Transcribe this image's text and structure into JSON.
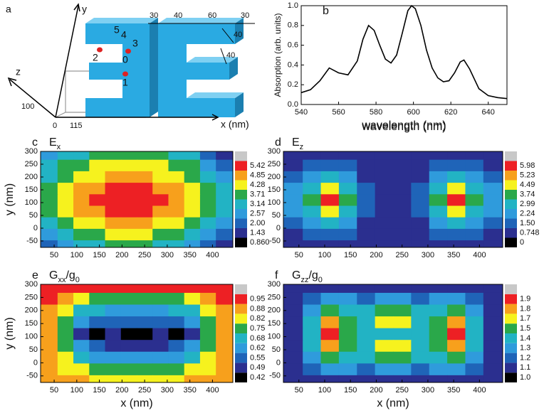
{
  "diagram": {
    "label": "a",
    "axes": {
      "x": "x (nm)",
      "y": "y",
      "z": "z"
    },
    "axis_marks": {
      "origin": 0,
      "x": 115,
      "z": 100
    },
    "dimensions": [
      30,
      40,
      60,
      30,
      40,
      40
    ],
    "sites": [
      0,
      1,
      2,
      3,
      4,
      5
    ]
  },
  "chart_data": [
    {
      "type": "line",
      "label": "b",
      "xlabel": "wavelength (nm)",
      "ylabel": "Absorption (arb. units)",
      "color": "#000000",
      "x": [
        540,
        545,
        550,
        555,
        560,
        565,
        570,
        573,
        576,
        579,
        582,
        585,
        588,
        591,
        594,
        597,
        599,
        601,
        604,
        607,
        610,
        613,
        616,
        619,
        622,
        625,
        627,
        630,
        635,
        640,
        645,
        650
      ],
      "values": [
        0.12,
        0.15,
        0.24,
        0.37,
        0.32,
        0.3,
        0.44,
        0.66,
        0.8,
        0.75,
        0.6,
        0.46,
        0.42,
        0.5,
        0.72,
        0.95,
        1.0,
        0.97,
        0.8,
        0.55,
        0.37,
        0.27,
        0.23,
        0.24,
        0.32,
        0.43,
        0.45,
        0.36,
        0.16,
        0.09,
        0.07,
        0.06
      ],
      "xlim": [
        540,
        650
      ],
      "ylim": [
        0,
        1
      ],
      "xticks": [
        540,
        560,
        580,
        600,
        620,
        640
      ],
      "yticks": [
        {
          "value": 0,
          "label": "0.0"
        },
        0.2,
        0.4,
        0.6,
        0.8,
        {
          "value": 1,
          "label": "1.0"
        }
      ]
    },
    {
      "type": "contour",
      "label": "c",
      "title_parts": [
        {
          "text": "E"
        },
        {
          "text": "x",
          "sub": true
        }
      ],
      "ylabel": "y (nm)",
      "xlim": [
        20,
        445
      ],
      "ylim": [
        -75,
        300
      ],
      "xticks": [
        50,
        100,
        150,
        200,
        250,
        300,
        350,
        400
      ],
      "yticks": [
        -50,
        0,
        50,
        100,
        150,
        200,
        250,
        300
      ],
      "x": [
        40,
        75,
        110,
        145,
        180,
        215,
        250,
        285,
        320,
        355,
        390,
        425
      ],
      "y": [
        290,
        245,
        200,
        155,
        110,
        65,
        20,
        -25,
        -70
      ],
      "z": [
        [
          2.9,
          3.3,
          3.6,
          3.8,
          3.8,
          3.8,
          3.8,
          3.8,
          3.6,
          3.2,
          2.4,
          1.7
        ],
        [
          3.3,
          3.8,
          4.1,
          4.3,
          4.4,
          4.4,
          4.4,
          4.3,
          4.1,
          3.8,
          3.0,
          2.3
        ],
        [
          3.6,
          4.1,
          4.5,
          4.8,
          4.9,
          4.9,
          4.9,
          4.8,
          4.5,
          4.2,
          3.6,
          2.9
        ],
        [
          3.8,
          4.4,
          4.9,
          5.3,
          5.5,
          5.5,
          5.5,
          5.4,
          5.0,
          4.5,
          3.9,
          3.2
        ],
        [
          3.9,
          4.5,
          5.1,
          5.5,
          5.7,
          5.8,
          5.8,
          5.6,
          5.2,
          4.7,
          4.0,
          3.3
        ],
        [
          3.8,
          4.4,
          4.9,
          5.3,
          5.5,
          5.5,
          5.5,
          5.4,
          5.0,
          4.5,
          3.9,
          3.2
        ],
        [
          3.5,
          4.0,
          4.5,
          4.8,
          4.9,
          4.9,
          4.9,
          4.8,
          4.5,
          4.1,
          3.5,
          2.9
        ],
        [
          3.0,
          3.6,
          4.0,
          4.2,
          4.3,
          4.3,
          4.3,
          4.2,
          4.0,
          3.6,
          3.0,
          2.4
        ],
        [
          2.4,
          3.0,
          3.5,
          3.7,
          3.8,
          3.8,
          3.8,
          3.7,
          3.5,
          3.0,
          2.4,
          1.9
        ]
      ],
      "levels": [
        {
          "value": 0.86,
          "label": "0.860"
        },
        1.43,
        {
          "value": 2,
          "label": "2.00"
        },
        2.57,
        3.14,
        3.71,
        4.28,
        4.85,
        5.42
      ],
      "colors": [
        "#000000",
        "#2b2f8f",
        "#1f64b8",
        "#2f9bdc",
        "#22b3c4",
        "#2aa84a",
        "#f6f21e",
        "#f7a01c",
        "#ed2024",
        "#c8c8c8"
      ]
    },
    {
      "type": "contour",
      "label": "d",
      "title_parts": [
        {
          "text": "E"
        },
        {
          "text": "z",
          "sub": true
        }
      ],
      "xlim": [
        20,
        445
      ],
      "ylim": [
        -75,
        300
      ],
      "xticks": [
        50,
        100,
        150,
        200,
        250,
        300,
        350,
        400
      ],
      "yticks": [
        -50,
        0,
        50,
        100,
        150,
        200,
        250,
        300
      ],
      "x": [
        40,
        75,
        110,
        145,
        180,
        215,
        250,
        285,
        320,
        355,
        390,
        425
      ],
      "y": [
        290,
        245,
        200,
        155,
        110,
        65,
        20,
        -25,
        -70
      ],
      "z": [
        [
          1.0,
          1.2,
          1.3,
          1.2,
          0.9,
          0.8,
          0.8,
          0.9,
          1.2,
          1.3,
          1.2,
          1.0
        ],
        [
          1.3,
          1.8,
          2.1,
          1.8,
          1.1,
          0.8,
          0.8,
          1.1,
          1.8,
          2.1,
          1.8,
          1.3
        ],
        [
          1.8,
          2.6,
          3.2,
          2.6,
          1.4,
          0.8,
          0.8,
          1.4,
          2.6,
          3.2,
          2.6,
          1.8
        ],
        [
          2.3,
          3.6,
          4.8,
          3.6,
          1.7,
          0.9,
          0.9,
          1.7,
          3.6,
          4.8,
          3.6,
          2.3
        ],
        [
          2.5,
          4.2,
          6.2,
          4.2,
          1.9,
          0.9,
          0.9,
          1.9,
          4.2,
          6.2,
          4.2,
          2.5
        ],
        [
          2.3,
          3.6,
          4.8,
          3.6,
          1.7,
          0.9,
          0.9,
          1.7,
          3.6,
          4.8,
          3.6,
          2.3
        ],
        [
          1.8,
          2.6,
          3.2,
          2.6,
          1.4,
          0.8,
          0.8,
          1.4,
          2.6,
          3.2,
          2.6,
          1.8
        ],
        [
          1.3,
          1.8,
          2.1,
          1.8,
          1.1,
          0.8,
          0.8,
          1.1,
          1.8,
          2.1,
          1.8,
          1.3
        ],
        [
          1.0,
          1.2,
          1.3,
          1.2,
          0.9,
          0.8,
          0.8,
          0.9,
          1.2,
          1.3,
          1.2,
          1.0
        ]
      ],
      "levels": [
        0,
        0.748,
        {
          "value": 1.5,
          "label": "1.50"
        },
        2.24,
        2.99,
        3.74,
        4.49,
        5.23,
        5.98
      ],
      "colors": [
        "#000000",
        "#2b2f8f",
        "#1f64b8",
        "#2f9bdc",
        "#22b3c4",
        "#2aa84a",
        "#f6f21e",
        "#f7a01c",
        "#ed2024",
        "#c8c8c8"
      ]
    },
    {
      "type": "contour",
      "label": "e",
      "title_parts": [
        {
          "text": "G"
        },
        {
          "text": "xx",
          "sub": true
        },
        {
          "text": "/g"
        },
        {
          "text": "0",
          "sub": true
        }
      ],
      "ylabel": "y (nm)",
      "xlabel": "x (nm)",
      "xlim": [
        20,
        445
      ],
      "ylim": [
        -75,
        300
      ],
      "xticks": [
        50,
        100,
        150,
        200,
        250,
        300,
        350,
        400
      ],
      "yticks": [
        -50,
        0,
        50,
        100,
        150,
        200,
        250,
        300
      ],
      "x": [
        40,
        75,
        110,
        145,
        180,
        215,
        250,
        285,
        320,
        355,
        390,
        425
      ],
      "y": [
        290,
        245,
        200,
        155,
        110,
        65,
        20,
        -25,
        -70
      ],
      "z": [
        [
          0.96,
          0.96,
          0.95,
          0.95,
          0.95,
          0.95,
          0.95,
          0.95,
          0.95,
          0.95,
          0.96,
          0.96
        ],
        [
          0.95,
          0.88,
          0.83,
          0.8,
          0.8,
          0.8,
          0.8,
          0.8,
          0.8,
          0.83,
          0.88,
          0.95
        ],
        [
          0.93,
          0.83,
          0.74,
          0.68,
          0.66,
          0.67,
          0.67,
          0.66,
          0.68,
          0.74,
          0.83,
          0.93
        ],
        [
          0.92,
          0.8,
          0.65,
          0.58,
          0.56,
          0.58,
          0.58,
          0.56,
          0.58,
          0.65,
          0.8,
          0.92
        ],
        [
          0.91,
          0.78,
          0.52,
          0.48,
          0.53,
          0.48,
          0.48,
          0.53,
          0.48,
          0.52,
          0.78,
          0.91
        ],
        [
          0.92,
          0.8,
          0.62,
          0.56,
          0.54,
          0.52,
          0.52,
          0.54,
          0.56,
          0.62,
          0.8,
          0.92
        ],
        [
          0.92,
          0.83,
          0.72,
          0.66,
          0.64,
          0.64,
          0.64,
          0.64,
          0.66,
          0.72,
          0.83,
          0.92
        ],
        [
          0.92,
          0.87,
          0.82,
          0.79,
          0.78,
          0.78,
          0.78,
          0.78,
          0.79,
          0.82,
          0.87,
          0.92
        ],
        [
          0.93,
          0.9,
          0.88,
          0.87,
          0.87,
          0.87,
          0.87,
          0.87,
          0.87,
          0.88,
          0.9,
          0.93
        ]
      ],
      "levels": [
        0.42,
        0.49,
        0.55,
        0.62,
        0.68,
        0.75,
        0.82,
        0.88,
        0.95
      ],
      "colors": [
        "#000000",
        "#2b2f8f",
        "#1f64b8",
        "#2f9bdc",
        "#22b3c4",
        "#2aa84a",
        "#f6f21e",
        "#f7a01c",
        "#ed2024",
        "#c8c8c8"
      ]
    },
    {
      "type": "contour",
      "label": "f",
      "title_parts": [
        {
          "text": "G"
        },
        {
          "text": "zz",
          "sub": true
        },
        {
          "text": "/g"
        },
        {
          "text": "0",
          "sub": true
        }
      ],
      "xlabel": "x (nm)",
      "xlim": [
        20,
        445
      ],
      "ylim": [
        -75,
        300
      ],
      "xticks": [
        50,
        100,
        150,
        200,
        250,
        300,
        350,
        400
      ],
      "yticks": [
        -50,
        0,
        50,
        100,
        150,
        200,
        250,
        300
      ],
      "x": [
        40,
        75,
        110,
        145,
        180,
        215,
        250,
        285,
        320,
        355,
        390,
        425
      ],
      "y": [
        290,
        245,
        200,
        155,
        110,
        65,
        20,
        -25,
        -70
      ],
      "z": [
        [
          1.12,
          1.13,
          1.15,
          1.16,
          1.16,
          1.16,
          1.16,
          1.16,
          1.16,
          1.15,
          1.13,
          1.12
        ],
        [
          1.13,
          1.22,
          1.32,
          1.3,
          1.28,
          1.3,
          1.3,
          1.28,
          1.3,
          1.32,
          1.22,
          1.13
        ],
        [
          1.14,
          1.35,
          1.55,
          1.45,
          1.4,
          1.55,
          1.55,
          1.4,
          1.45,
          1.55,
          1.35,
          1.14
        ],
        [
          1.14,
          1.42,
          1.85,
          1.55,
          1.48,
          1.75,
          1.75,
          1.48,
          1.55,
          1.85,
          1.42,
          1.14
        ],
        [
          1.14,
          1.44,
          1.9,
          1.55,
          1.45,
          1.45,
          1.45,
          1.45,
          1.55,
          1.9,
          1.44,
          1.14
        ],
        [
          1.14,
          1.42,
          1.85,
          1.55,
          1.48,
          1.75,
          1.75,
          1.48,
          1.55,
          1.85,
          1.42,
          1.14
        ],
        [
          1.14,
          1.35,
          1.55,
          1.45,
          1.4,
          1.55,
          1.55,
          1.4,
          1.45,
          1.55,
          1.35,
          1.14
        ],
        [
          1.13,
          1.22,
          1.32,
          1.3,
          1.28,
          1.3,
          1.3,
          1.28,
          1.3,
          1.32,
          1.22,
          1.13
        ],
        [
          1.12,
          1.13,
          1.15,
          1.16,
          1.16,
          1.16,
          1.16,
          1.16,
          1.16,
          1.15,
          1.13,
          1.12
        ]
      ],
      "levels": [
        {
          "value": 1,
          "label": "1.0"
        },
        1.1,
        1.2,
        1.3,
        1.4,
        1.5,
        1.7,
        1.8,
        1.9
      ],
      "colors": [
        "#000000",
        "#2b2f8f",
        "#1f64b8",
        "#2f9bdc",
        "#22b3c4",
        "#2aa84a",
        "#f6f21e",
        "#f7a01c",
        "#ed2024",
        "#c8c8c8"
      ]
    }
  ]
}
